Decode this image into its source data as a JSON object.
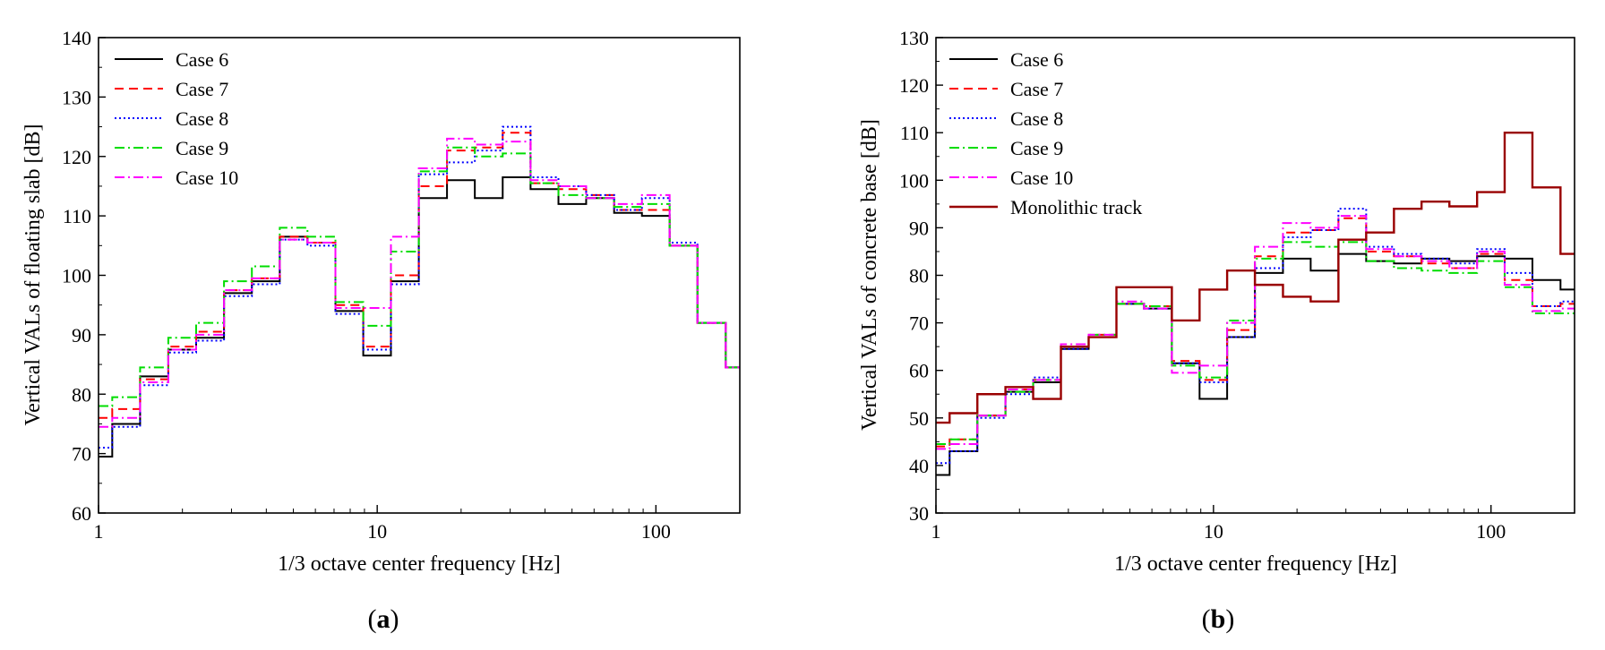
{
  "chart_data": [
    {
      "type": "line",
      "step": true,
      "panel_label": {
        "open": "(",
        "letter": "a",
        "close": ")"
      },
      "xlabel": "1/3 octave center frequency [Hz]",
      "ylabel": "Vertical VALs of floating slab [dB]",
      "xscale": "log",
      "xlim": [
        1,
        200
      ],
      "ylim": [
        60,
        140
      ],
      "yticks": [
        60,
        70,
        80,
        90,
        100,
        110,
        120,
        130,
        140
      ],
      "xticks": [
        {
          "value": 1,
          "label": "1"
        },
        {
          "value": 10,
          "label": "10"
        },
        {
          "value": 100,
          "label": "100"
        }
      ],
      "legend_position": "top-left",
      "x_edges": [
        1,
        1.12,
        1.41,
        1.78,
        2.24,
        2.82,
        3.55,
        4.47,
        5.62,
        7.08,
        8.91,
        11.2,
        14.1,
        17.8,
        22.4,
        28.2,
        35.5,
        44.7,
        56.2,
        70.8,
        89.1,
        112,
        141,
        178,
        200
      ],
      "series": [
        {
          "name": "Case 6",
          "color": "#000000",
          "dash": "solid",
          "values": [
            69.5,
            75,
            83,
            87.5,
            89.5,
            97,
            99,
            106.5,
            105.5,
            94,
            86.5,
            99,
            113,
            116,
            113,
            116.5,
            114.5,
            112,
            113,
            110.5,
            110,
            105,
            92,
            84.5
          ]
        },
        {
          "name": "Case 7",
          "color": "#ff0000",
          "dash": "dashed",
          "values": [
            76,
            77.5,
            82.5,
            88,
            90.5,
            97.5,
            99.5,
            106.5,
            105.5,
            95,
            88,
            100,
            115,
            121,
            121.5,
            124,
            115.5,
            114.5,
            113.5,
            111,
            111,
            105,
            92,
            84.5
          ]
        },
        {
          "name": "Case 8",
          "color": "#0000ff",
          "dash": "dotted",
          "values": [
            71,
            74.5,
            81.5,
            87,
            89,
            96.5,
            98.5,
            106,
            105,
            93.5,
            87.5,
            98.5,
            117,
            119,
            121,
            125,
            116.5,
            115,
            113.5,
            111,
            113,
            105.5,
            92,
            84.5
          ]
        },
        {
          "name": "Case 9",
          "color": "#00dd00",
          "dash": "dashdot",
          "values": [
            78,
            79.5,
            84.5,
            89.5,
            92,
            99,
            101.5,
            108,
            106.5,
            95.5,
            91.5,
            104,
            117.5,
            121.5,
            120,
            120.5,
            115.5,
            113.5,
            113,
            111.5,
            112,
            105,
            92,
            84.5
          ]
        },
        {
          "name": "Case 10",
          "color": "#ff00ff",
          "dash": "dashdot",
          "values": [
            74.5,
            76,
            82,
            87.5,
            90,
            97.5,
            99.5,
            106,
            105.5,
            94.5,
            94.5,
            106.5,
            118,
            123,
            122,
            122.5,
            116,
            115,
            113,
            112,
            113.5,
            105,
            92,
            84.5
          ]
        }
      ]
    },
    {
      "type": "line",
      "step": true,
      "panel_label": {
        "open": "(",
        "letter": "b",
        "close": ")"
      },
      "xlabel": "1/3 octave center frequency [Hz]",
      "ylabel": "Vertical VALs of concrete base [dB]",
      "xscale": "log",
      "xlim": [
        1,
        200
      ],
      "ylim": [
        30,
        130
      ],
      "yticks": [
        30,
        40,
        50,
        60,
        70,
        80,
        90,
        100,
        110,
        120,
        130
      ],
      "xticks": [
        {
          "value": 1,
          "label": "1"
        },
        {
          "value": 10,
          "label": "10"
        },
        {
          "value": 100,
          "label": "100"
        }
      ],
      "legend_position": "top-left",
      "x_edges": [
        1,
        1.12,
        1.41,
        1.78,
        2.24,
        2.82,
        3.55,
        4.47,
        5.62,
        7.08,
        8.91,
        11.2,
        14.1,
        17.8,
        22.4,
        28.2,
        35.5,
        44.7,
        56.2,
        70.8,
        89.1,
        112,
        141,
        178,
        200
      ],
      "series": [
        {
          "name": "Case 6",
          "color": "#000000",
          "dash": "solid",
          "values": [
            38,
            43,
            50.5,
            55.5,
            57.5,
            64.5,
            67,
            74,
            73,
            61.5,
            54,
            67,
            80.5,
            83.5,
            81,
            84.5,
            83,
            82.5,
            83.5,
            83,
            84,
            83.5,
            79,
            77
          ]
        },
        {
          "name": "Case 7",
          "color": "#ff0000",
          "dash": "dashed",
          "values": [
            44,
            45.5,
            50.5,
            56,
            58,
            65,
            67.5,
            74,
            73.5,
            62,
            58,
            68.5,
            84,
            89,
            89.5,
            92,
            85,
            84,
            82.5,
            81.5,
            84.5,
            79,
            73.5,
            74
          ]
        },
        {
          "name": "Case 8",
          "color": "#0000ff",
          "dash": "dotted",
          "values": [
            40.5,
            43,
            50,
            55,
            58.5,
            64.5,
            67,
            74,
            73,
            61.5,
            57.5,
            67,
            81.5,
            88,
            89.5,
            94,
            86,
            84.5,
            83.5,
            82.5,
            85.5,
            80.5,
            73.5,
            74.5
          ]
        },
        {
          "name": "Case 9",
          "color": "#00dd00",
          "dash": "dashdot",
          "values": [
            44.5,
            45.5,
            50.5,
            55.5,
            58,
            65,
            67.5,
            74,
            73.5,
            61,
            58.5,
            70.5,
            83.5,
            87,
            86,
            87,
            83,
            81.5,
            81,
            80.5,
            83,
            77.5,
            72,
            72
          ]
        },
        {
          "name": "Case 10",
          "color": "#ff00ff",
          "dash": "dashdot",
          "values": [
            43.5,
            44.5,
            50.5,
            56,
            58,
            65.5,
            67.5,
            74.5,
            73,
            59.5,
            61,
            70,
            86,
            91,
            90,
            92.5,
            85.5,
            84,
            83,
            81.5,
            85,
            78,
            72.5,
            73
          ]
        },
        {
          "name": "Monolithic track",
          "color": "#990000",
          "dash": "solid",
          "values": [
            49,
            51,
            55,
            56.5,
            54,
            65,
            67,
            77.5,
            77.5,
            70.5,
            77,
            81,
            78,
            75.5,
            74.5,
            87.5,
            89,
            94,
            95.5,
            94.5,
            97.5,
            110,
            98.5,
            84.5
          ]
        }
      ]
    }
  ]
}
